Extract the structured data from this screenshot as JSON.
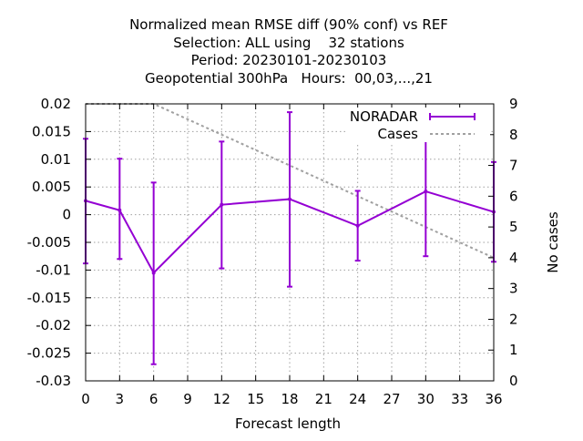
{
  "chart_data": {
    "type": "line",
    "title_lines": [
      "Normalized mean RMSE diff (90% conf) vs REF",
      "Selection: ALL using    32 stations",
      "Period: 20230101-20230103",
      "Geopotential 300hPa   Hours:  00,03,...,21"
    ],
    "xlabel": "Forecast length",
    "y2label": "No cases",
    "xlim": [
      0,
      36
    ],
    "ylim": [
      -0.03,
      0.02
    ],
    "y2lim": [
      0,
      9
    ],
    "x_ticks": [
      "0",
      "3",
      "6",
      "9",
      "12",
      "15",
      "18",
      "21",
      "24",
      "27",
      "30",
      "33",
      "36"
    ],
    "y_ticks": [
      "0.02",
      "0.015",
      "0.01",
      "0.005",
      "0",
      "-0.005",
      "-0.01",
      "-0.015",
      "-0.02",
      "-0.025",
      "-0.03"
    ],
    "y2_ticks": [
      "9",
      "8",
      "7",
      "6",
      "5",
      "4",
      "3",
      "2",
      "1",
      "0"
    ],
    "grid": true,
    "legend_position": "top-right",
    "series": [
      {
        "name": "NORADAR",
        "color": "#9400d3",
        "x": [
          0,
          3,
          6,
          12,
          18,
          24,
          30,
          36
        ],
        "y": [
          0.0025,
          0.0008,
          -0.0105,
          0.0018,
          0.0028,
          -0.002,
          0.0042,
          0.0005
        ],
        "err_low": [
          -0.0088,
          -0.008,
          -0.027,
          -0.0097,
          -0.013,
          -0.0083,
          -0.0075,
          -0.0085
        ],
        "err_high": [
          0.0137,
          0.0101,
          0.0058,
          0.0132,
          0.0185,
          0.0043,
          0.0158,
          0.0095
        ]
      },
      {
        "name": "Cases",
        "color": "#a0a0a0",
        "axis": "y2",
        "x": [
          0,
          6,
          12,
          18,
          24,
          30,
          36
        ],
        "y": [
          9,
          9,
          8,
          7,
          6,
          5,
          4
        ]
      }
    ]
  }
}
